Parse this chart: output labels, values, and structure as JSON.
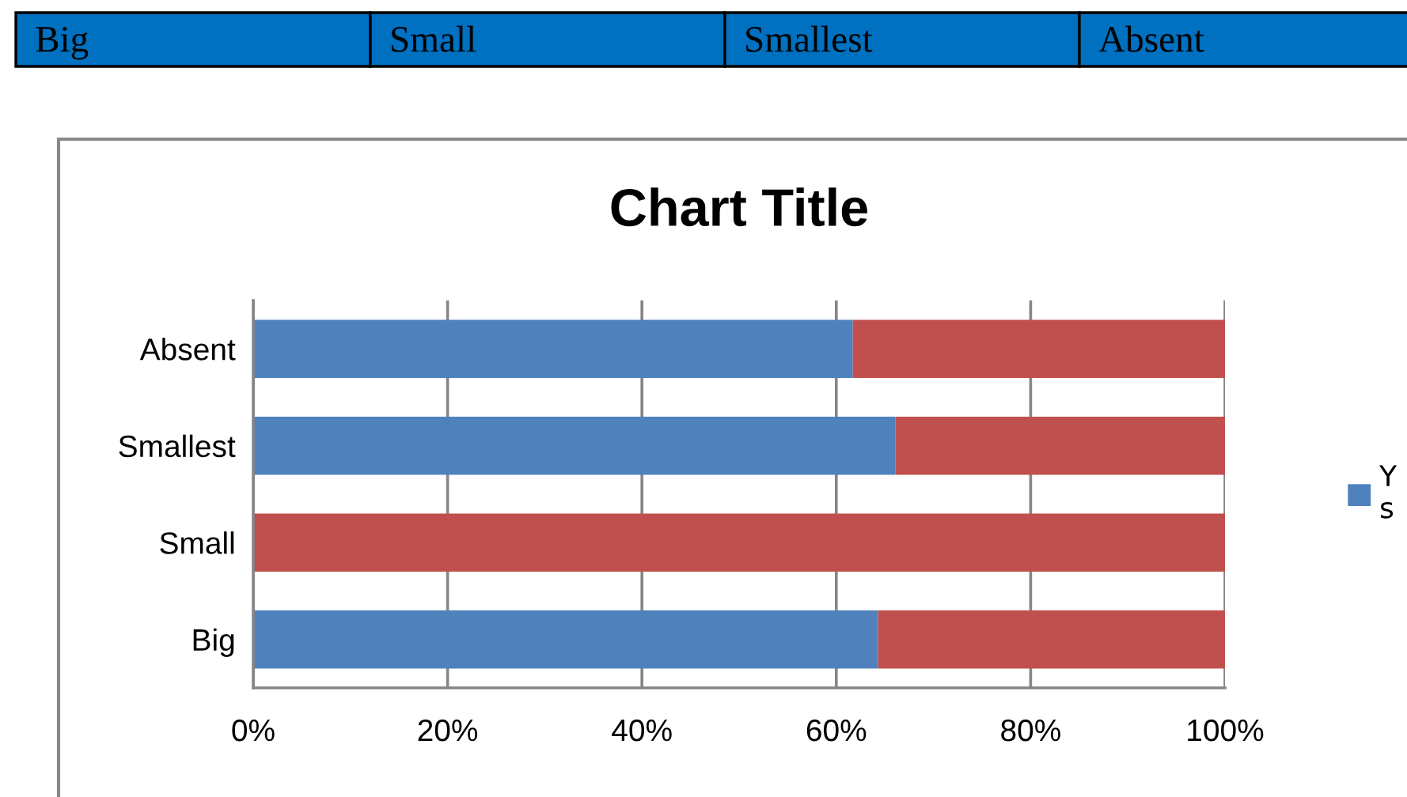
{
  "chart_data": {
    "type": "bar",
    "orientation": "horizontal",
    "stacked": true,
    "title": "Chart Title",
    "categories": [
      "Absent",
      "Smallest",
      "Small",
      "Big"
    ],
    "series": [
      {
        "name": "Y\ns",
        "color": "#4f81bd",
        "values": [
          61.7,
          66.1,
          0,
          64.3
        ]
      },
      {
        "color": "#c0504d",
        "values": [
          38.3,
          33.9,
          100,
          35.7
        ]
      }
    ],
    "xlim": [
      0,
      100
    ],
    "xticks": [
      {
        "value": 0,
        "label": "0%"
      },
      {
        "value": 20,
        "label": "20%"
      },
      {
        "value": 40,
        "label": "40%"
      },
      {
        "value": 60,
        "label": "60%"
      },
      {
        "value": 80,
        "label": "80%"
      },
      {
        "value": 100,
        "label": "100%"
      }
    ],
    "grid": "x",
    "legend": "right",
    "annotations": [
      "Big",
      "Small",
      "Smallest",
      "Absent"
    ]
  }
}
